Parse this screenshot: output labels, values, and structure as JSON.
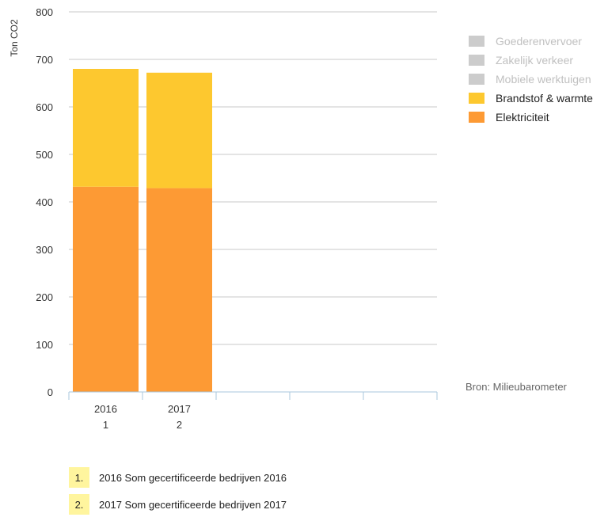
{
  "chart_data": {
    "type": "bar",
    "stacked": true,
    "ylabel": "Ton CO2",
    "ylim": [
      0,
      800
    ],
    "yticks": [
      0,
      100,
      200,
      300,
      400,
      500,
      600,
      700,
      800
    ],
    "grid": true,
    "categories": [
      {
        "year": "2016",
        "index": "1"
      },
      {
        "year": "2017",
        "index": "2"
      },
      {
        "year": "",
        "index": ""
      },
      {
        "year": "",
        "index": ""
      },
      {
        "year": "",
        "index": ""
      }
    ],
    "series": [
      {
        "name": "Elektriciteit",
        "color": "#fd9a34",
        "values": [
          432,
          429,
          null,
          null,
          null
        ]
      },
      {
        "name": "Brandstof & warmte",
        "color": "#fdc82f",
        "values": [
          248,
          243,
          null,
          null,
          null
        ]
      },
      {
        "name": "Mobiele werktuigen",
        "color": "#cccccc",
        "values": [
          0,
          0,
          null,
          null,
          null
        ]
      },
      {
        "name": "Zakelijk verkeer",
        "color": "#cccccc",
        "values": [
          0,
          0,
          null,
          null,
          null
        ]
      },
      {
        "name": "Goederenvervoer",
        "color": "#cccccc",
        "values": [
          0,
          0,
          null,
          null,
          null
        ]
      }
    ]
  },
  "legend": [
    {
      "label": "Goederenvervoer",
      "color": "#cccccc",
      "active": false
    },
    {
      "label": "Zakelijk verkeer",
      "color": "#cccccc",
      "active": false
    },
    {
      "label": "Mobiele werktuigen",
      "color": "#cccccc",
      "active": false
    },
    {
      "label": "Brandstof & warmte",
      "color": "#fdc82f",
      "active": true
    },
    {
      "label": "Elektriciteit",
      "color": "#fd9a34",
      "active": true
    }
  ],
  "source": "Bron: Milieubarometer",
  "notes": [
    {
      "num": "1.",
      "text": "2016 Som gecertificeerde bedrijven 2016"
    },
    {
      "num": "2.",
      "text": "2017 Som gecertificeerde bedrijven 2017"
    }
  ]
}
